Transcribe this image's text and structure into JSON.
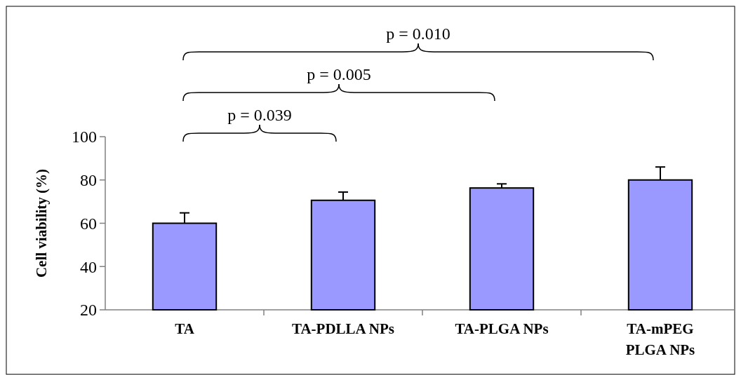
{
  "chart_data": {
    "type": "bar",
    "ylabel": "Cell viability (%)",
    "categories": [
      "TA",
      "TA-PDLLA NPs",
      "TA-PLGA NPs",
      "TA-mPEG PLGA NPs"
    ],
    "values": [
      60,
      70.6,
      76.3,
      80
    ],
    "errors": [
      4.8,
      3.8,
      1.9,
      6
    ],
    "color": "#9999ff",
    "ylim": [
      20,
      100
    ],
    "yticks": [
      20,
      40,
      60,
      80,
      100
    ],
    "grid": false,
    "annotations": [
      "p = 0.039",
      "p = 0.005",
      "p = 0.010"
    ]
  }
}
